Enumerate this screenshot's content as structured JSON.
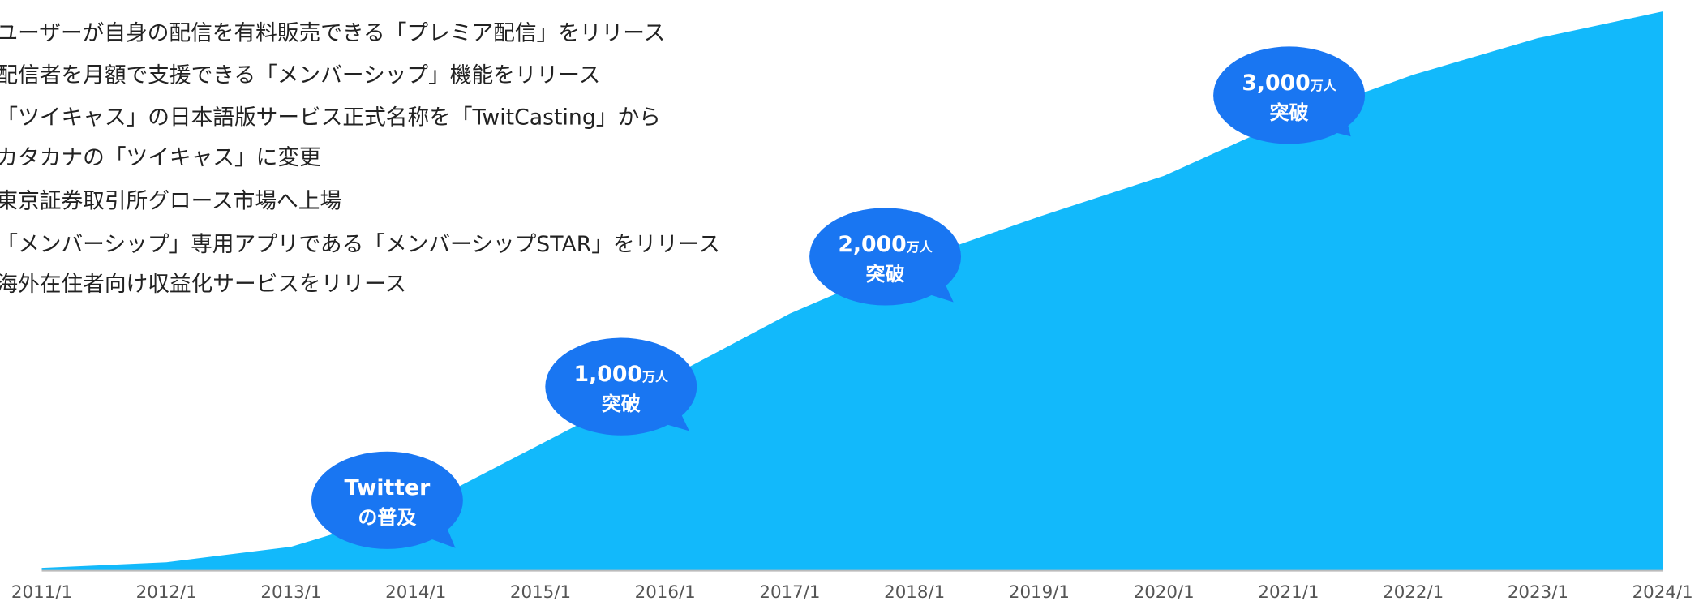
{
  "chart_data": {
    "type": "area",
    "events": [
      [
        "ユーザーが自身の配信を有料販売できる「プレミア配信」をリリース"
      ],
      [
        "配信者を月額で支援できる「メンバーシップ」機能をリリース"
      ],
      [
        "「ツイキャス」の日本語版サービス正式名称を「TwitCasting」から",
        "カタカナの「ツイキャス」に変更"
      ],
      [
        "東京証券取引所グロース市場へ上場"
      ],
      [
        "「メンバーシップ」専用アプリである「メンバーシップSTAR」をリリース"
      ],
      [
        "海外在住者向け収益化サービスをリリース"
      ]
    ],
    "categories": [
      "2011/1",
      "2012/1",
      "2013/1",
      "2014/1",
      "2015/1",
      "2016/1",
      "2017/1",
      "2018/1",
      "2019/1",
      "2020/1",
      "2021/1",
      "2022/1",
      "2023/1",
      "2024/1"
    ],
    "values": [
      20,
      60,
      170,
      440,
      900,
      1360,
      1830,
      2210,
      2520,
      2810,
      3210,
      3530,
      3790,
      3980
    ],
    "ylim": [
      0,
      4000
    ],
    "color": "#12b9fb",
    "annotations": [
      {
        "lines": [
          "Twitter",
          "の普及"
        ],
        "color": "#1976f2"
      },
      {
        "lines": [
          "1,000",
          "万人",
          "突破"
        ],
        "color": "#1976f2"
      },
      {
        "lines": [
          "2,000",
          "万人",
          "突破"
        ],
        "color": "#1976f2"
      },
      {
        "lines": [
          "3,000",
          "万人",
          "突破"
        ],
        "color": "#1976f2"
      }
    ]
  }
}
